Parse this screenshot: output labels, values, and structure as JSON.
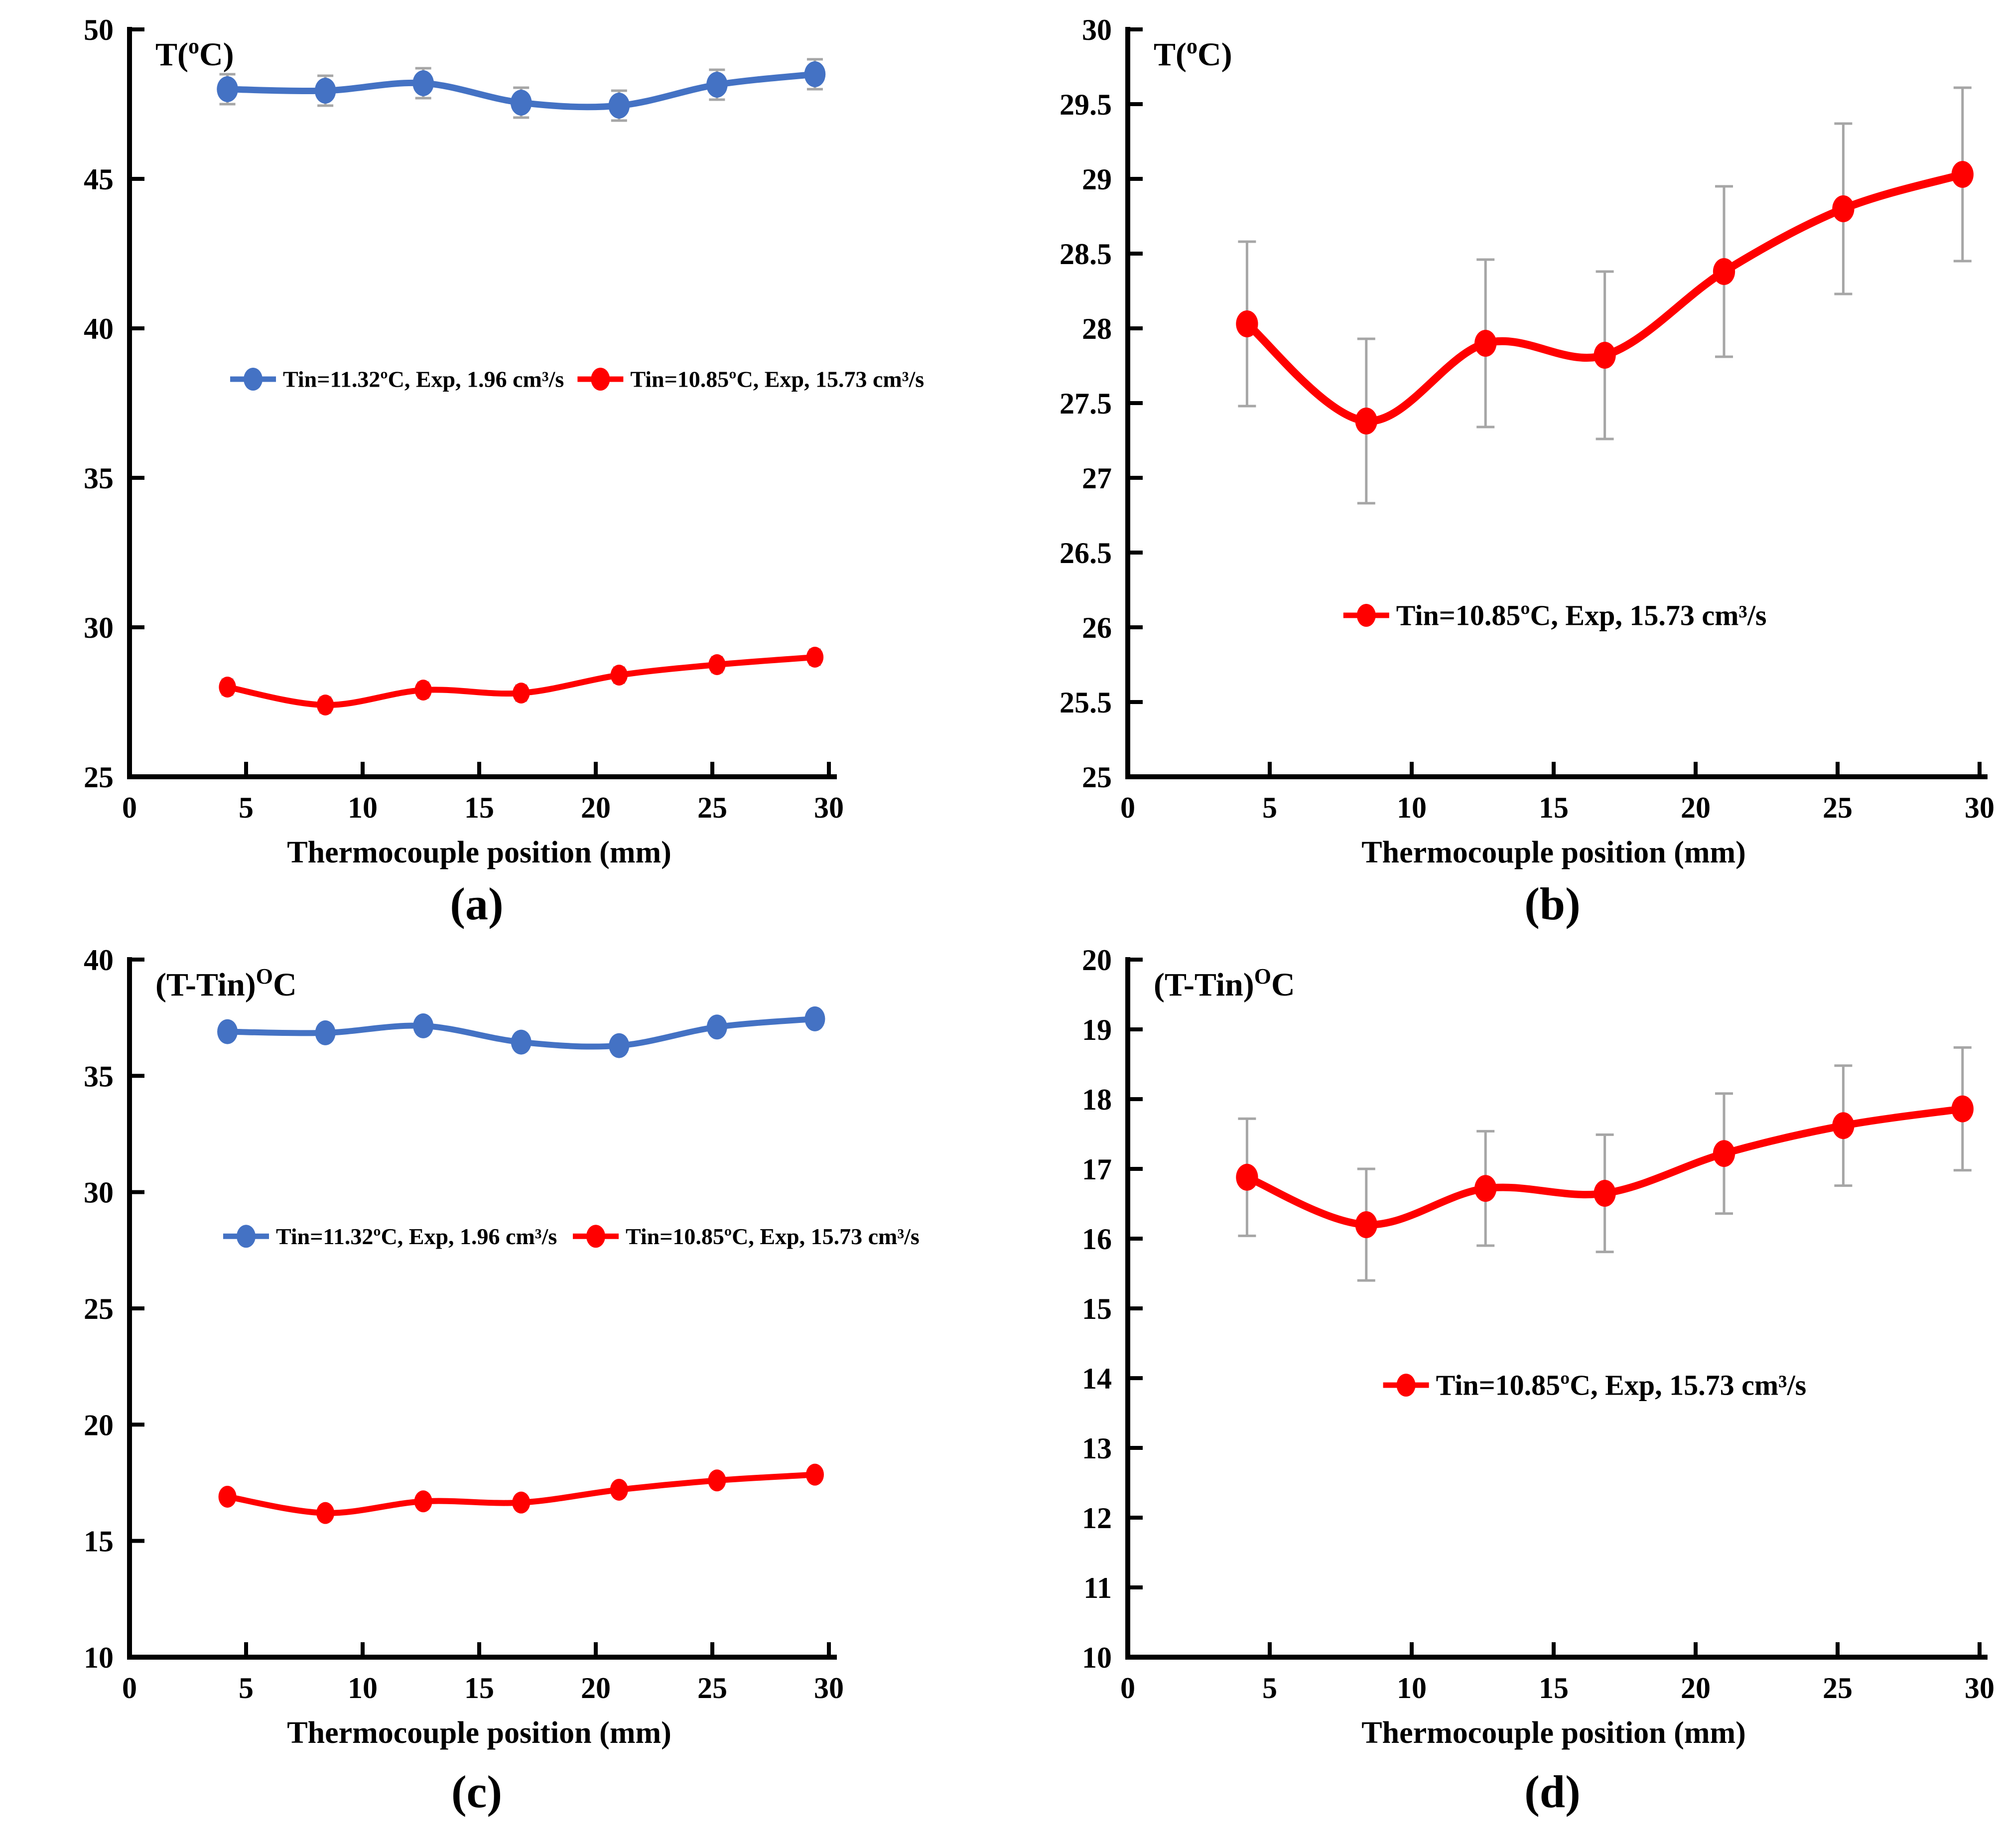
{
  "figure": {
    "xlabel": "Thermocouple position (mm)",
    "captions": {
      "a": "(a)",
      "b": "(b)",
      "c": "(c)",
      "d": "(d)"
    }
  },
  "colors": {
    "blue_series": "#4472C4",
    "red_series": "#FF0000",
    "error_bar": "#A6A6A6",
    "axis": "#000000",
    "text": "#000000"
  },
  "legend_labels": {
    "blue": "Tin=11.32ºC, Exp, 1.96 cm³/s",
    "red": "Tin=10.85ºC, Exp, 15.73 cm³/s"
  },
  "chart_data": [
    {
      "id": "a",
      "type": "line",
      "title": "",
      "ylabel": {
        "pre": "T(",
        "sup": "o",
        "post": "C)"
      },
      "xlabel": "Thermocouple position (mm)",
      "caption": "(a)",
      "xlim": [
        0,
        30
      ],
      "ylim": [
        25,
        50
      ],
      "xticks": [
        "0",
        "5",
        "10",
        "15",
        "20",
        "25",
        "30"
      ],
      "yticks": [
        "25",
        "30",
        "35",
        "40",
        "45",
        "50"
      ],
      "grid": false,
      "x": [
        4.2,
        8.4,
        12.6,
        16.8,
        21.0,
        25.2,
        29.4
      ],
      "series": [
        {
          "name": "Tin=11.32ºC, Exp, 1.96 cm³/s",
          "color": "#4472C4",
          "values": [
            48.0,
            47.95,
            48.2,
            47.55,
            47.45,
            48.15,
            48.5
          ],
          "errors": [
            0.5,
            0.5,
            0.5,
            0.5,
            0.5,
            0.5,
            0.5
          ]
        },
        {
          "name": "Tin=10.85ºC, Exp, 15.73 cm³/s",
          "color": "#FF0000",
          "values": [
            28.0,
            27.4,
            27.9,
            27.8,
            28.4,
            28.75,
            29.0
          ],
          "errors": [
            0.25,
            0.25,
            0.25,
            0.25,
            0.25,
            0.25,
            0.25
          ]
        }
      ],
      "legend": [
        {
          "series": 0,
          "x": 5.3,
          "y": 38.3
        },
        {
          "series": 1,
          "x": 20.2,
          "y": 38.3
        }
      ]
    },
    {
      "id": "b",
      "type": "line",
      "title": "",
      "ylabel": {
        "pre": "T(",
        "sup": "o",
        "post": "C)"
      },
      "xlabel": "Thermocouple position (mm)",
      "caption": "(b)",
      "xlim": [
        0,
        30
      ],
      "ylim": [
        25,
        30
      ],
      "xticks": [
        "0",
        "5",
        "10",
        "15",
        "20",
        "25",
        "30"
      ],
      "yticks": [
        "25",
        "25.5",
        "26",
        "26.5",
        "27",
        "27.5",
        "28",
        "28.5",
        "29",
        "29.5",
        "30"
      ],
      "grid": false,
      "x": [
        4.2,
        8.4,
        12.6,
        16.8,
        21.0,
        25.2,
        29.4
      ],
      "series": [
        {
          "name": "Tin=10.85ºC, Exp, 15.73 cm³/s",
          "color": "#FF0000",
          "values": [
            28.03,
            27.38,
            27.9,
            27.82,
            28.38,
            28.8,
            29.03
          ],
          "errors": [
            0.55,
            0.55,
            0.56,
            0.56,
            0.57,
            0.57,
            0.58
          ]
        }
      ],
      "legend": [
        {
          "series": 0,
          "x": 8.4,
          "y": 26.08
        }
      ]
    },
    {
      "id": "c",
      "type": "line",
      "title": "",
      "ylabel": {
        "pre": "(T-Tin)",
        "sup": "O",
        "post": "C"
      },
      "xlabel": "Thermocouple position (mm)",
      "caption": "(c)",
      "xlim": [
        0,
        30
      ],
      "ylim": [
        10,
        40
      ],
      "xticks": [
        "0",
        "5",
        "10",
        "15",
        "20",
        "25",
        "30"
      ],
      "yticks": [
        "10",
        "15",
        "20",
        "25",
        "30",
        "35",
        "40"
      ],
      "grid": false,
      "x": [
        4.2,
        8.4,
        12.6,
        16.8,
        21.0,
        25.2,
        29.4
      ],
      "series": [
        {
          "name": "Tin=11.32ºC, Exp, 1.96 cm³/s",
          "color": "#4472C4",
          "values": [
            36.9,
            36.85,
            37.15,
            36.45,
            36.3,
            37.1,
            37.45
          ],
          "errors": [
            0.25,
            0.25,
            0.25,
            0.25,
            0.25,
            0.25,
            0.25
          ]
        },
        {
          "name": "Tin=10.85ºC, Exp, 15.73 cm³/s",
          "color": "#FF0000",
          "values": [
            16.9,
            16.2,
            16.7,
            16.65,
            17.2,
            17.6,
            17.85
          ],
          "errors": [
            0.25,
            0.25,
            0.25,
            0.25,
            0.25,
            0.25,
            0.25
          ]
        }
      ],
      "legend": [
        {
          "series": 0,
          "x": 5.0,
          "y": 28.1
        },
        {
          "series": 1,
          "x": 20.0,
          "y": 28.1
        }
      ]
    },
    {
      "id": "d",
      "type": "line",
      "title": "",
      "ylabel": {
        "pre": "(T-Tin)",
        "sup": "O",
        "post": "C"
      },
      "xlabel": "Thermocouple position (mm)",
      "caption": "(d)",
      "xlim": [
        0,
        30
      ],
      "ylim": [
        10,
        20
      ],
      "xticks": [
        "0",
        "5",
        "10",
        "15",
        "20",
        "25",
        "30"
      ],
      "yticks": [
        "10",
        "11",
        "12",
        "13",
        "14",
        "15",
        "16",
        "17",
        "18",
        "19",
        "20"
      ],
      "grid": false,
      "x": [
        4.2,
        8.4,
        12.6,
        16.8,
        21.0,
        25.2,
        29.4
      ],
      "series": [
        {
          "name": "Tin=10.85ºC, Exp, 15.73 cm³/s",
          "color": "#FF0000",
          "values": [
            16.88,
            16.2,
            16.72,
            16.65,
            17.22,
            17.62,
            17.86
          ],
          "errors": [
            0.84,
            0.8,
            0.82,
            0.84,
            0.86,
            0.86,
            0.88
          ]
        }
      ],
      "legend": [
        {
          "series": 0,
          "x": 9.8,
          "y": 13.9
        }
      ]
    }
  ]
}
